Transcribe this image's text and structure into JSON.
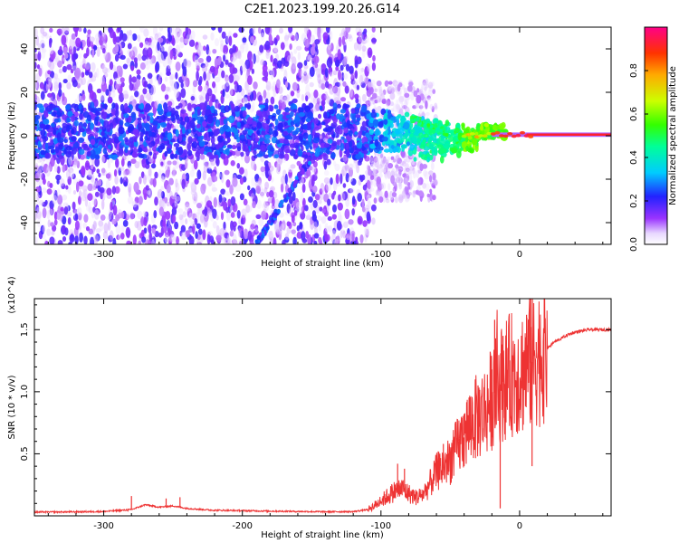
{
  "title": "C2E1.2023.199.20.26.G14",
  "chart_data": [
    {
      "type": "heatmap",
      "name": "spectrogram",
      "xlabel": "Height of straight line (km)",
      "ylabel": "Frequency (Hz)",
      "xlim": [
        -350,
        66
      ],
      "ylim": [
        -50,
        50
      ],
      "x_ticks": [
        -300,
        -200,
        -100,
        0
      ],
      "x_tick_labels": [
        "-300",
        "-200",
        "-100",
        "0"
      ],
      "y_ticks": [
        -40,
        -20,
        0,
        20,
        40
      ],
      "y_tick_labels": [
        "-40",
        "-20",
        "0",
        "20",
        "40"
      ],
      "colorbar": {
        "label": "Normalized spectral amplitude",
        "range": [
          0,
          1
        ],
        "ticks": [
          0.0,
          0.2,
          0.4,
          0.6,
          0.8
        ],
        "tick_labels": [
          "0.0",
          "0.2",
          "0.4",
          "0.6",
          "0.8"
        ]
      },
      "features": [
        {
          "kind": "main_tone",
          "x_range": [
            -350,
            66
          ],
          "freq_hz": 0.5,
          "amplitude_trend": "rising from ~0.2 near -100 km to ~0.95 above -20 km"
        },
        {
          "kind": "diagonal_branch",
          "x_range": [
            -190,
            -150
          ],
          "freq_hz_range": [
            -50,
            -10
          ]
        },
        {
          "kind": "background_noise",
          "x_range": [
            -350,
            -110
          ],
          "freq_hz_range": [
            -50,
            50
          ],
          "amplitude": 0.2
        }
      ]
    },
    {
      "type": "line",
      "name": "snr",
      "xlabel": "Height of straight line (km)",
      "ylabel": "SNR (10 * v/v)",
      "y_multiplier": "(x10^4)",
      "xlim": [
        -350,
        66
      ],
      "ylim": [
        0,
        17500
      ],
      "x_ticks": [
        -300,
        -200,
        -100,
        0
      ],
      "x_tick_labels": [
        "-300",
        "-200",
        "-100",
        "0"
      ],
      "y_ticks": [
        5000,
        10000,
        15000
      ],
      "y_tick_labels": [
        "0.5",
        "1.0",
        "1.5"
      ],
      "color": "#ee3333",
      "series": [
        {
          "x": [
            -350,
            -320,
            -300,
            -280,
            -270,
            -260,
            -250,
            -240,
            -220,
            -200,
            -180,
            -160,
            -140,
            -120,
            -110,
            -105,
            -100,
            -95,
            -90,
            -85,
            -80,
            -75,
            -70,
            -65,
            -60,
            -55,
            -50,
            -45,
            -40,
            -35,
            -30,
            -25,
            -20,
            -15,
            -10,
            -5,
            0,
            5,
            10,
            15,
            20,
            25,
            30,
            35,
            40,
            45,
            50,
            55,
            60,
            66
          ],
          "y": [
            300,
            320,
            350,
            500,
            900,
            700,
            800,
            600,
            450,
            420,
            380,
            350,
            330,
            340,
            500,
            800,
            1200,
            1600,
            2000,
            2200,
            1800,
            1500,
            1700,
            2500,
            3500,
            4000,
            4500,
            5500,
            6500,
            7500,
            8000,
            8500,
            9500,
            10500,
            11000,
            11500,
            11500,
            12000,
            12500,
            13000,
            13500,
            14000,
            14300,
            14600,
            14800,
            14900,
            15000,
            15000,
            15000,
            15000
          ]
        }
      ],
      "spikes": [
        {
          "x": -280,
          "y": 1600
        },
        {
          "x": -255,
          "y": 1400
        },
        {
          "x": -245,
          "y": 1500
        },
        {
          "x": -88,
          "y": 4200
        },
        {
          "x": -83,
          "y": 3800
        },
        {
          "x": -55,
          "y": 5800
        },
        {
          "x": -40,
          "y": 8200
        },
        {
          "x": -30,
          "y": 10500
        },
        {
          "x": -20,
          "y": 11800
        },
        {
          "x": -18,
          "y": 15800
        },
        {
          "x": -14,
          "y": 600
        },
        {
          "x": -12,
          "y": 14500
        },
        {
          "x": 5,
          "y": 16200
        },
        {
          "x": 8,
          "y": 17500
        },
        {
          "x": 9,
          "y": 4000
        },
        {
          "x": 12,
          "y": 14000
        }
      ]
    }
  ]
}
